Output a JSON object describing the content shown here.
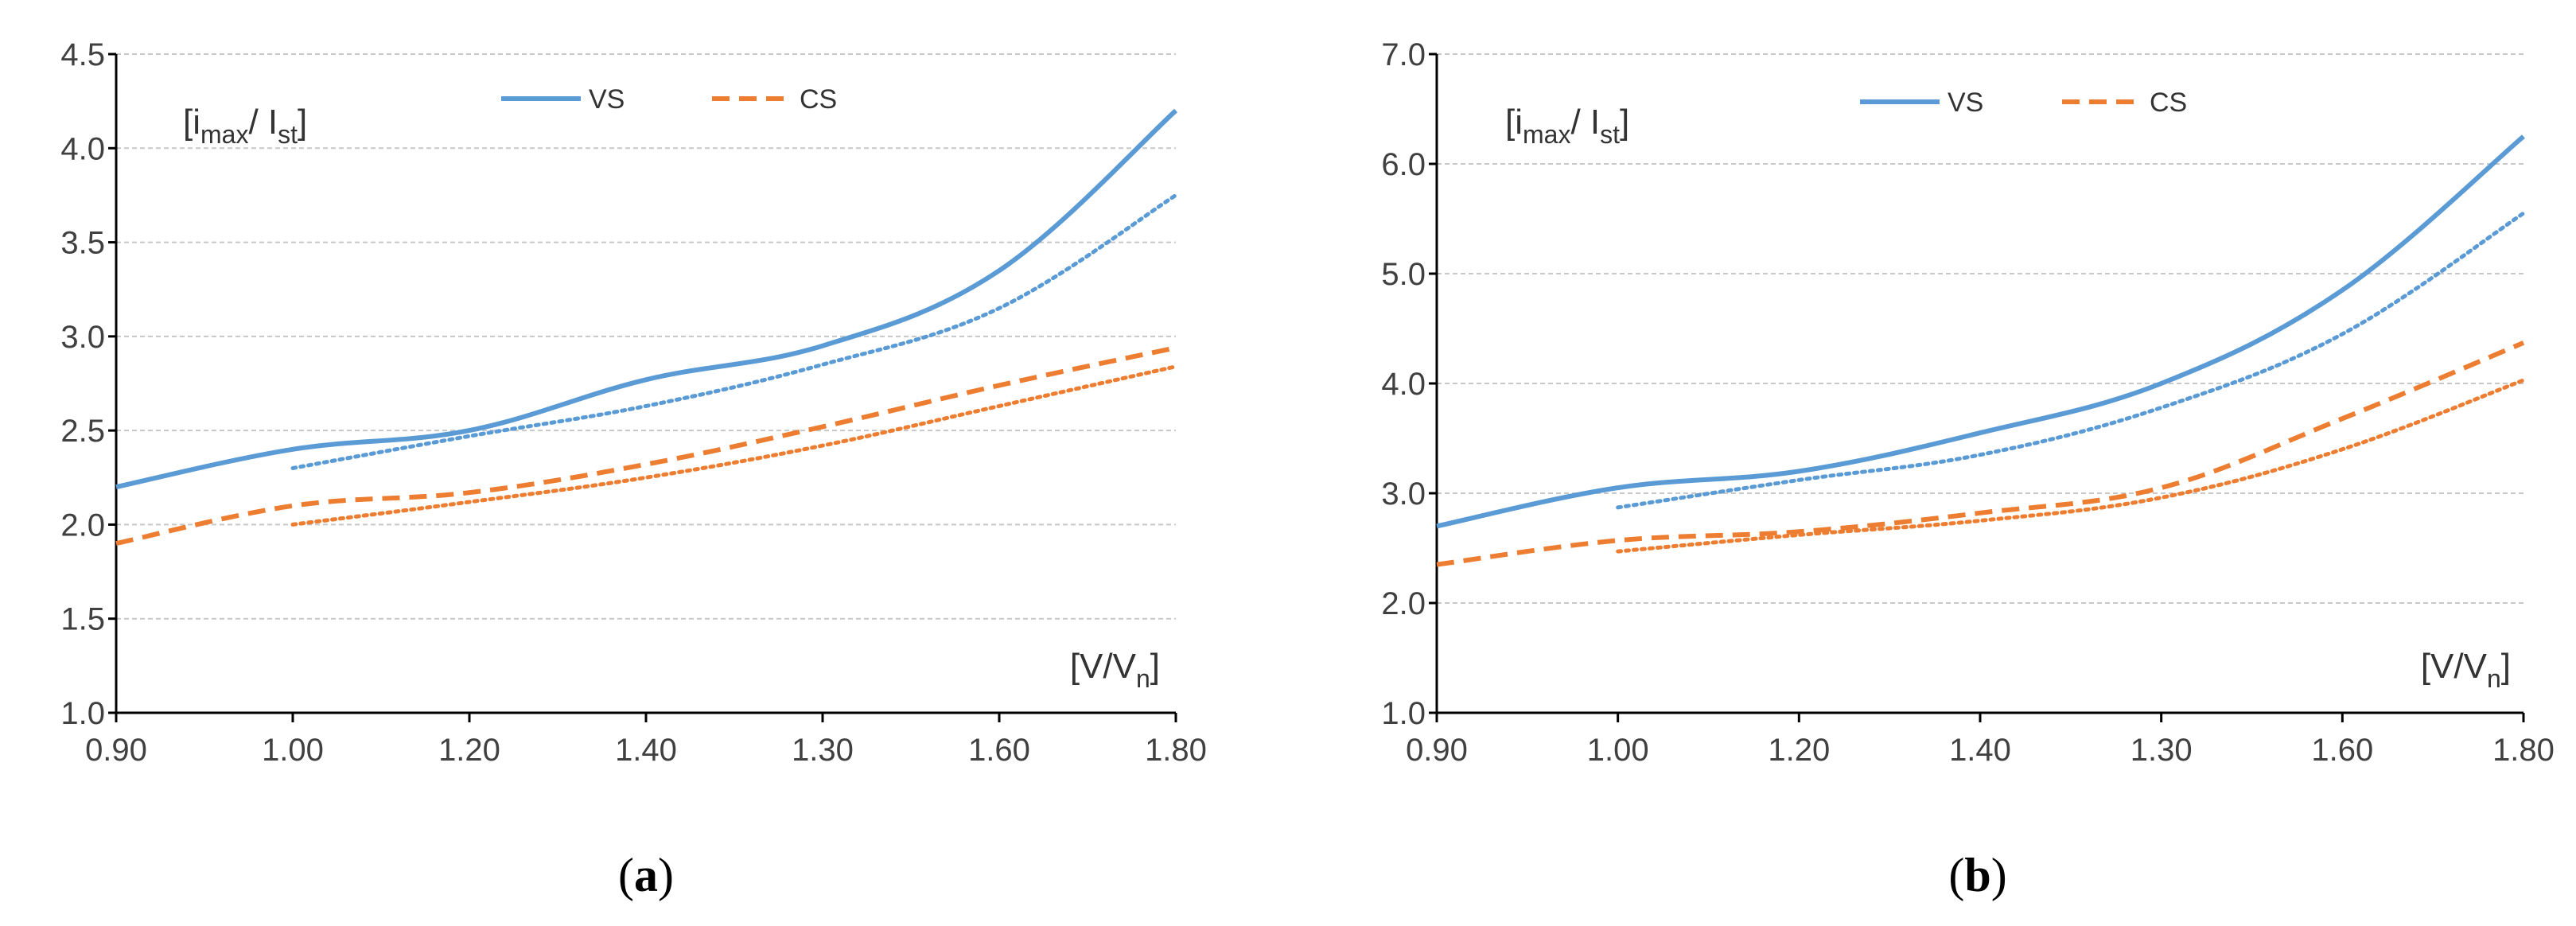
{
  "colors": {
    "vs": "#5b9bd5",
    "cs": "#ed7d31",
    "grid": "#c8c8c8",
    "axis": "#000000"
  },
  "chart_data": [
    {
      "panel": "a",
      "panel_label": "a",
      "type": "line",
      "ylabel_main": "i",
      "ylabel_sub1": "max",
      "ylabel_mid": "/ I",
      "ylabel_sub2": "st",
      "xlabel_main": "[V/V",
      "xlabel_sub": "n",
      "xlabel_end": "]",
      "x_categories": [
        "0.90",
        "1.00",
        "1.20",
        "1.40",
        "1.30",
        "1.60",
        "1.80"
      ],
      "y_ticks": [
        "1.0",
        "1.5",
        "2.0",
        "2.5",
        "3.0",
        "3.5",
        "4.0",
        "4.5"
      ],
      "ylim": [
        1.0,
        4.5
      ],
      "legend": [
        {
          "name": "VS",
          "style": "solid",
          "color": "vs"
        },
        {
          "name": "CS",
          "style": "dashed",
          "color": "cs"
        }
      ],
      "series": [
        {
          "name": "VS",
          "style": "solid",
          "color": "vs",
          "x": [
            0,
            1,
            2,
            3,
            4,
            5,
            6
          ],
          "values": [
            2.2,
            2.4,
            2.5,
            2.77,
            2.95,
            3.35,
            4.2
          ]
        },
        {
          "name": "VS (dotted)",
          "style": "dotted",
          "color": "vs",
          "x": [
            1,
            2,
            3,
            4,
            5,
            6
          ],
          "values": [
            2.3,
            2.47,
            2.63,
            2.85,
            3.15,
            3.75
          ]
        },
        {
          "name": "CS",
          "style": "dashed",
          "color": "cs",
          "x": [
            0,
            1,
            2,
            3,
            4,
            5,
            6
          ],
          "values": [
            1.9,
            2.1,
            2.17,
            2.32,
            2.52,
            2.74,
            2.94
          ]
        },
        {
          "name": "CS (dotted)",
          "style": "dotted",
          "color": "cs",
          "x": [
            1,
            2,
            3,
            4,
            5,
            6
          ],
          "values": [
            2.0,
            2.12,
            2.25,
            2.42,
            2.63,
            2.84
          ]
        }
      ]
    },
    {
      "panel": "b",
      "panel_label": "b",
      "type": "line",
      "ylabel_main": "i",
      "ylabel_sub1": "max",
      "ylabel_mid": "/ I",
      "ylabel_sub2": "st",
      "xlabel_main": "[V/V",
      "xlabel_sub": "n",
      "xlabel_end": "]",
      "x_categories": [
        "0.90",
        "1.00",
        "1.20",
        "1.40",
        "1.30",
        "1.60",
        "1.80"
      ],
      "y_ticks": [
        "1.0",
        "2.0",
        "3.0",
        "4.0",
        "5.0",
        "6.0",
        "7.0"
      ],
      "ylim": [
        1.0,
        7.0
      ],
      "legend": [
        {
          "name": "VS",
          "style": "solid",
          "color": "vs"
        },
        {
          "name": "CS",
          "style": "dashed",
          "color": "cs"
        }
      ],
      "series": [
        {
          "name": "VS",
          "style": "solid",
          "color": "vs",
          "x": [
            0,
            1,
            2,
            3,
            4,
            5,
            6
          ],
          "values": [
            2.7,
            3.05,
            3.2,
            3.55,
            4.0,
            4.85,
            6.25
          ]
        },
        {
          "name": "VS (dotted)",
          "style": "dotted",
          "color": "vs",
          "x": [
            1,
            2,
            3,
            4,
            5,
            6
          ],
          "values": [
            2.87,
            3.12,
            3.35,
            3.78,
            4.45,
            5.55
          ]
        },
        {
          "name": "CS",
          "style": "dashed",
          "color": "cs",
          "x": [
            0,
            1,
            2,
            3,
            4,
            5,
            6
          ],
          "values": [
            2.35,
            2.57,
            2.65,
            2.82,
            3.05,
            3.68,
            4.37
          ]
        },
        {
          "name": "CS (dotted)",
          "style": "dotted",
          "color": "cs",
          "x": [
            1,
            2,
            3,
            4,
            5,
            6
          ],
          "values": [
            2.47,
            2.62,
            2.75,
            2.96,
            3.4,
            4.03
          ]
        }
      ]
    }
  ]
}
